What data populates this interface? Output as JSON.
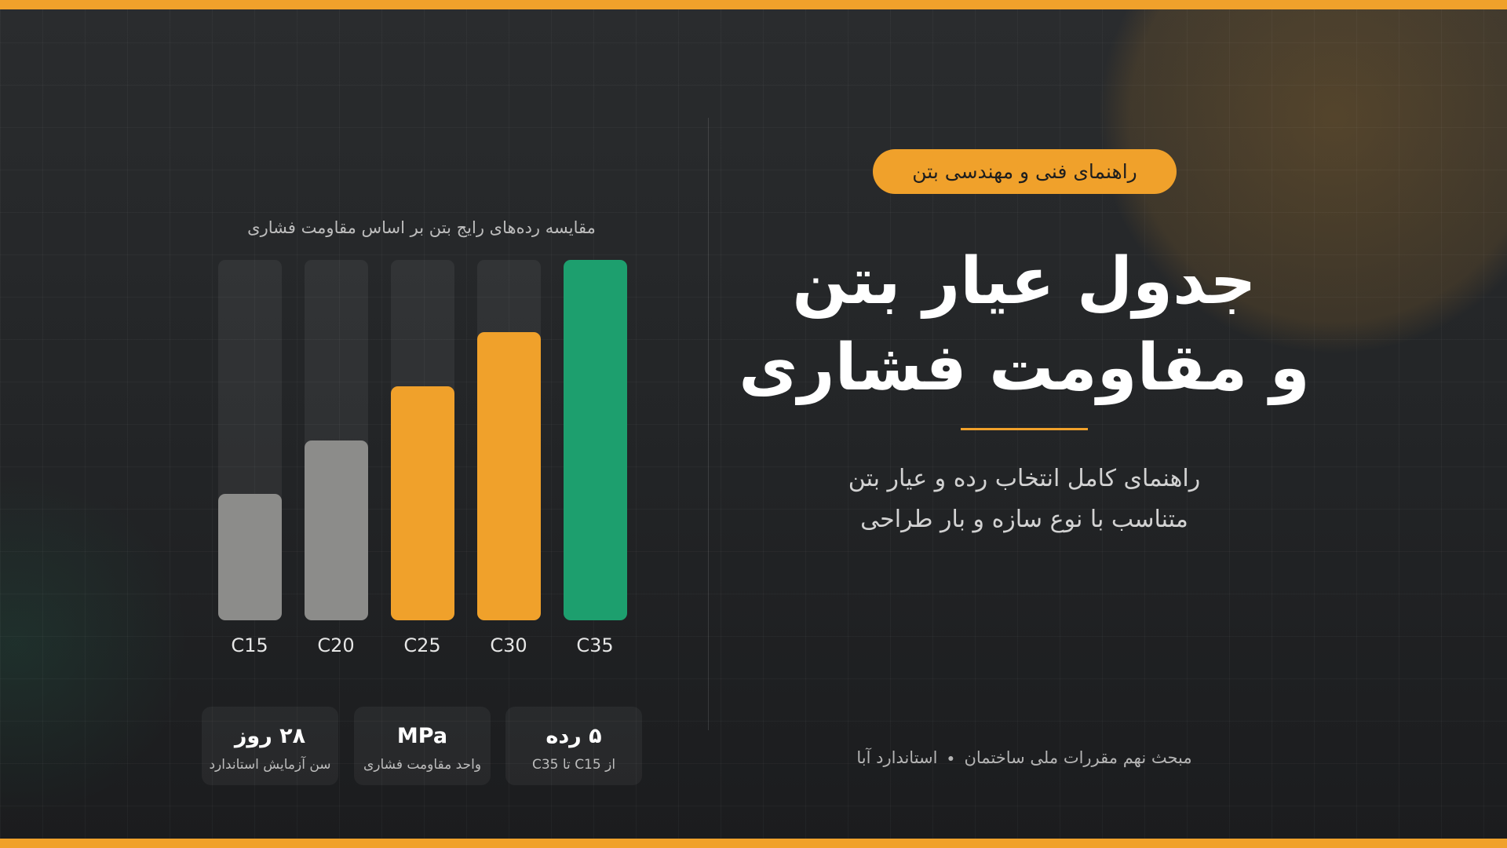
{
  "header": {
    "badge": "راهنمای فنی و مهندسی بتن",
    "title_lines": [
      "جدول عیار بتن",
      "و مقاومت فشاری"
    ],
    "subtitle_lines": [
      "راهنمای کامل انتخاب رده و عیار بتن",
      "متناسب با نوع سازه و بار طراحی"
    ],
    "footer": [
      "مبحث نهم مقررات ملی ساختمان",
      "استاندارد آبا"
    ]
  },
  "stats": [
    {
      "value": "۵ رده",
      "label": "از C15 تا C35"
    },
    {
      "value": "MPa",
      "label": "واحد مقاومت فشاری"
    },
    {
      "value": "۲۸ روز",
      "label": "سن آزمایش استاندارد"
    }
  ],
  "chart_data": {
    "type": "bar",
    "title": "مقایسه رده‌های رایج بتن بر اساس مقاومت فشاری",
    "categories": [
      "C15",
      "C20",
      "C25",
      "C30",
      "C35"
    ],
    "values": [
      35,
      50,
      65,
      80,
      100
    ],
    "colors": [
      "#8c8c8a",
      "#8c8c8a",
      "#f0a12b",
      "#f0a12b",
      "#1d9f6e"
    ],
    "ylim": [
      0,
      100
    ]
  }
}
